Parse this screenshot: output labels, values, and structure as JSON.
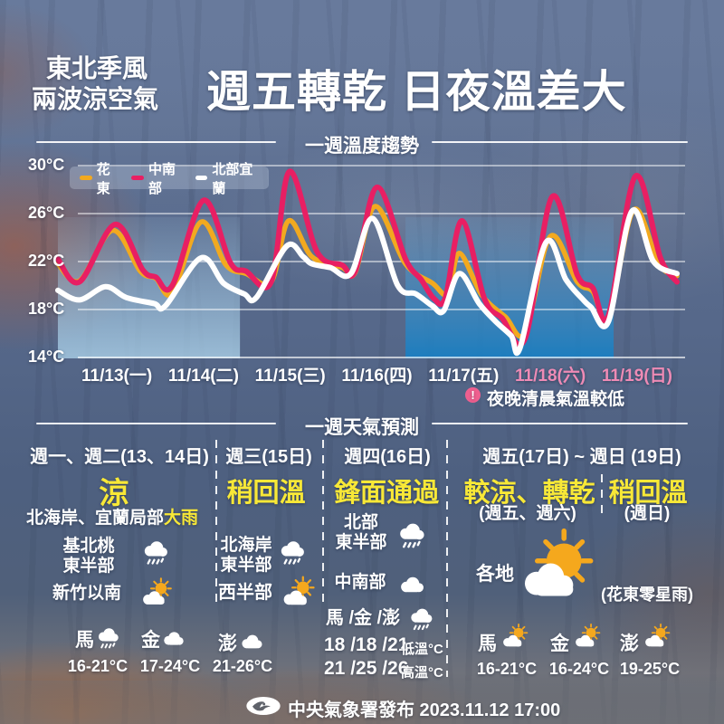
{
  "header": {
    "tagline_line1": "東北季風",
    "tagline_line2": "兩波涼空氣",
    "title": "週五轉乾 日夜溫差大"
  },
  "chart_section": {
    "title": "一週溫度趨勢",
    "note_icon": "exclamation-circle",
    "note_mark": "!",
    "note_text": "夜晚清晨氣溫較低"
  },
  "chart_data": {
    "type": "line",
    "title": "一週溫度趨勢",
    "y_unit": "°C",
    "ylim": [
      14,
      30
    ],
    "grid": true,
    "legend_position": "top-left",
    "yticks": [
      {
        "value": 30,
        "label": "30°C"
      },
      {
        "value": 26,
        "label": "26°C"
      },
      {
        "value": 22,
        "label": "22°C"
      },
      {
        "value": 18,
        "label": "18°C"
      },
      {
        "value": 14,
        "label": "14°C"
      }
    ],
    "x_tick_labels": [
      "11/13(一)",
      "11/14(二)",
      "11/15(三)",
      "11/16(四)",
      "11/17(五)",
      "11/18(六)",
      "11/19(日)"
    ],
    "x_tick_colors": [
      "#ffffff",
      "#ffffff",
      "#ffffff",
      "#ffffff",
      "#ffffff",
      "#ee8bb5",
      "#ee8bb5"
    ],
    "x_tick_days": [
      0.5,
      1.5,
      2.5,
      3.5,
      4.5,
      5.5,
      6.5
    ],
    "x_range_days": [
      -0.18,
      6.96
    ],
    "legend": [
      {
        "label": "花東",
        "color": "#f2a91f"
      },
      {
        "label": "中南部",
        "color": "#e81f63"
      },
      {
        "label": "北部宜蘭",
        "color": "#ffffff"
      }
    ],
    "cool_air_bands": [
      {
        "from_day": -0.18,
        "to_day": 1.92,
        "top_color": "rgba(173,214,240,0.10)",
        "mid_color": "rgba(173,214,240,0.42)",
        "bottom_color": "rgba(180,220,243,0.72)"
      },
      {
        "from_day": 3.83,
        "to_day": 6.23,
        "top_color": "rgba(110,175,220,0.15)",
        "mid_color": "rgba(70,150,205,0.55)",
        "bottom_color": "rgba(25,126,193,0.95)"
      }
    ],
    "series": [
      {
        "name": "花東",
        "color": "#f2a91f",
        "width": 5.5,
        "points": [
          [
            -0.18,
            21.8
          ],
          [
            0.07,
            20.4
          ],
          [
            0.45,
            24.6
          ],
          [
            0.77,
            21.2
          ],
          [
            0.95,
            20.6
          ],
          [
            1.14,
            19.4
          ],
          [
            1.47,
            25.3
          ],
          [
            1.76,
            21.7
          ],
          [
            1.99,
            21.0
          ],
          [
            2.28,
            20.3
          ],
          [
            2.48,
            25.4
          ],
          [
            2.75,
            22.4
          ],
          [
            3.1,
            21.5
          ],
          [
            3.25,
            21.1
          ],
          [
            3.48,
            26.6
          ],
          [
            3.83,
            21.8
          ],
          [
            4.14,
            20.2
          ],
          [
            4.32,
            19.3
          ],
          [
            4.45,
            22.7
          ],
          [
            4.71,
            19.2
          ],
          [
            4.98,
            17.4
          ],
          [
            5.21,
            16.1
          ],
          [
            5.5,
            24.1
          ],
          [
            5.81,
            20.3
          ],
          [
            5.99,
            19.5
          ],
          [
            6.17,
            17.3
          ],
          [
            6.46,
            26.3
          ],
          [
            6.75,
            21.8
          ],
          [
            6.96,
            20.8
          ]
        ]
      },
      {
        "name": "中南部",
        "color": "#e81f63",
        "width": 6,
        "points": [
          [
            -0.18,
            22.2
          ],
          [
            0.07,
            20.3
          ],
          [
            0.48,
            25.1
          ],
          [
            0.8,
            21.3
          ],
          [
            0.95,
            20.7
          ],
          [
            1.14,
            20.0
          ],
          [
            1.5,
            27.1
          ],
          [
            1.81,
            21.9
          ],
          [
            1.99,
            21.2
          ],
          [
            2.28,
            20.3
          ],
          [
            2.49,
            29.5
          ],
          [
            2.81,
            22.8
          ],
          [
            3.1,
            21.7
          ],
          [
            3.25,
            21.2
          ],
          [
            3.5,
            28.2
          ],
          [
            3.83,
            22.2
          ],
          [
            4.01,
            20.5
          ],
          [
            4.16,
            18.9
          ],
          [
            4.29,
            19.0
          ],
          [
            4.48,
            25.4
          ],
          [
            4.74,
            18.9
          ],
          [
            4.94,
            17.3
          ],
          [
            5.21,
            15.6
          ],
          [
            5.52,
            27.4
          ],
          [
            5.81,
            20.9
          ],
          [
            5.99,
            19.8
          ],
          [
            6.17,
            17.5
          ],
          [
            6.48,
            29.1
          ],
          [
            6.77,
            22.3
          ],
          [
            6.96,
            20.3
          ]
        ]
      },
      {
        "name": "北部宜蘭",
        "color": "#ffffff",
        "width": 6,
        "points": [
          [
            -0.18,
            19.6
          ],
          [
            0.07,
            18.8
          ],
          [
            0.37,
            19.9
          ],
          [
            0.61,
            19.0
          ],
          [
            0.93,
            18.5
          ],
          [
            1.06,
            18.3
          ],
          [
            1.47,
            22.3
          ],
          [
            1.73,
            20.2
          ],
          [
            1.97,
            19.3
          ],
          [
            2.11,
            19.0
          ],
          [
            2.46,
            23.3
          ],
          [
            2.65,
            22.4
          ],
          [
            2.75,
            21.8
          ],
          [
            2.96,
            21.5
          ],
          [
            3.2,
            21.0
          ],
          [
            3.45,
            25.6
          ],
          [
            3.74,
            20.0
          ],
          [
            3.95,
            19.3
          ],
          [
            4.14,
            18.3
          ],
          [
            4.27,
            17.9
          ],
          [
            4.45,
            21.0
          ],
          [
            4.68,
            18.5
          ],
          [
            4.87,
            17.0
          ],
          [
            5.05,
            15.8
          ],
          [
            5.15,
            14.8
          ],
          [
            5.45,
            23.6
          ],
          [
            5.68,
            20.5
          ],
          [
            5.88,
            18.8
          ],
          [
            5.97,
            18.2
          ],
          [
            6.17,
            17.0
          ],
          [
            6.44,
            26.2
          ],
          [
            6.69,
            22.0
          ],
          [
            6.96,
            21.0
          ]
        ]
      }
    ]
  },
  "forecast": {
    "title": "一週天氣預測",
    "columns": [
      {
        "header": "週一、週二(13、14日)",
        "headline": "涼",
        "subline_white": "北海岸、宜蘭局部",
        "subline_yellow": "大雨",
        "regions": [
          {
            "line1": "基北桃",
            "line2": "東半部",
            "icon": "rain"
          },
          {
            "line1": "新竹以南",
            "line2": "",
            "icon": "partly-sunny"
          }
        ],
        "islands": [
          {
            "label": "馬",
            "icon": "rain",
            "temp": "16-21°C"
          },
          {
            "label": "金",
            "icon": "cloudy",
            "temp": "17-24°C"
          }
        ]
      },
      {
        "header": "週三(15日)",
        "headline": "稍回溫",
        "regions": [
          {
            "line1": "北海岸",
            "line2": "東半部",
            "icon": "rain"
          },
          {
            "line1": "西半部",
            "line2": "",
            "icon": "partly-sunny"
          }
        ],
        "islands": [
          {
            "label": "澎",
            "icon": "cloudy",
            "temp": "21-26°C"
          }
        ]
      },
      {
        "header": "週四(16日)",
        "headline": "鋒面通過",
        "regions": [
          {
            "line1": "北部",
            "line2": "東半部",
            "icon": "rain"
          },
          {
            "line1": "中南部",
            "line2": "",
            "icon": "cloudy"
          },
          {
            "line1": "馬 /金 /澎",
            "line2": "",
            "icon": "rain"
          }
        ],
        "temp_rows": [
          {
            "values": "18 /18 /21",
            "label": "低溫°C"
          },
          {
            "values": "21 /25 /26",
            "label": "高溫°C"
          }
        ]
      },
      {
        "header": "週五(17日) ~ 週日 (19日)",
        "sub_headers": [
          {
            "title": "較涼、轉乾",
            "subtitle": "(週五、週六)"
          },
          {
            "title": "稍回溫",
            "subtitle": "(週日)"
          }
        ],
        "main_region": {
          "label": "各地",
          "icon": "sunny-cloud",
          "note": "(花東零星雨)"
        },
        "islands": [
          {
            "label": "馬",
            "icon": "partly-sunny",
            "temp": "16-21°C"
          },
          {
            "label": "金",
            "icon": "partly-sunny",
            "temp": "16-24°C"
          },
          {
            "label": "澎",
            "icon": "partly-sunny",
            "temp": "19-25°C"
          }
        ]
      }
    ]
  },
  "footer": {
    "logo_icon": "cwa-bird-logo",
    "text": "中央氣象署發布 2023.11.12  17:00"
  }
}
